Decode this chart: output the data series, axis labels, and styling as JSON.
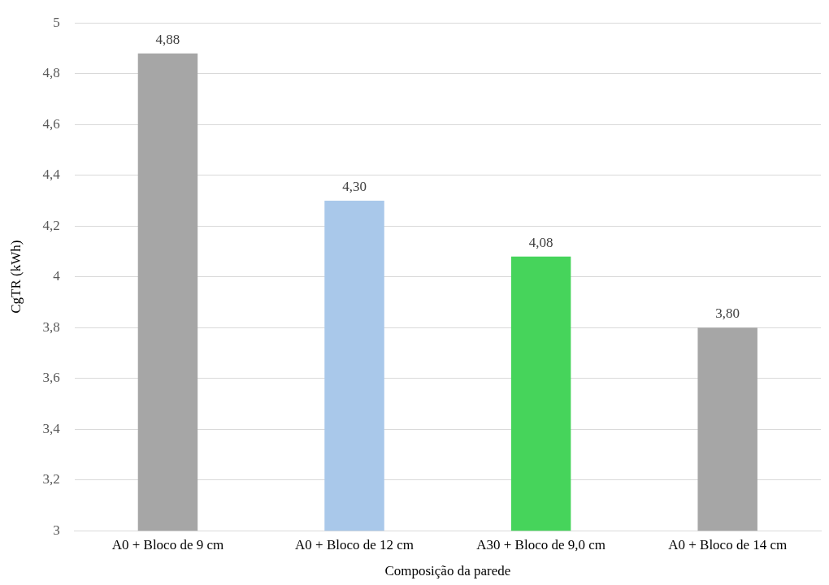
{
  "chart_data": {
    "type": "bar",
    "xlabel": "Composição da parede",
    "ylabel": "CgTR (kWh)",
    "categories": [
      "A0 + Bloco de 9 cm",
      "A0 + Bloco de 12 cm",
      "A30 + Bloco de 9,0 cm",
      "A0 + Bloco de 14 cm"
    ],
    "values": [
      4.88,
      4.3,
      4.08,
      3.8
    ],
    "colors": [
      "#a6a6a6",
      "#a9c8ea",
      "#46d45b",
      "#a6a6a6"
    ],
    "value_labels": [
      "4,88",
      "4,30",
      "4,08",
      "3,80"
    ],
    "ylim": [
      3,
      5
    ],
    "yticks": [
      {
        "value": 3,
        "label": "3"
      },
      {
        "value": 3.2,
        "label": "3,2"
      },
      {
        "value": 3.4,
        "label": "3,4"
      },
      {
        "value": 3.6,
        "label": "3,6"
      },
      {
        "value": 3.8,
        "label": "3,8"
      },
      {
        "value": 4,
        "label": "4"
      },
      {
        "value": 4.2,
        "label": "4,2"
      },
      {
        "value": 4.4,
        "label": "4,4"
      },
      {
        "value": 4.6,
        "label": "4,6"
      },
      {
        "value": 4.8,
        "label": "4,8"
      },
      {
        "value": 5,
        "label": "5"
      }
    ],
    "grid": "y",
    "legend": false
  }
}
